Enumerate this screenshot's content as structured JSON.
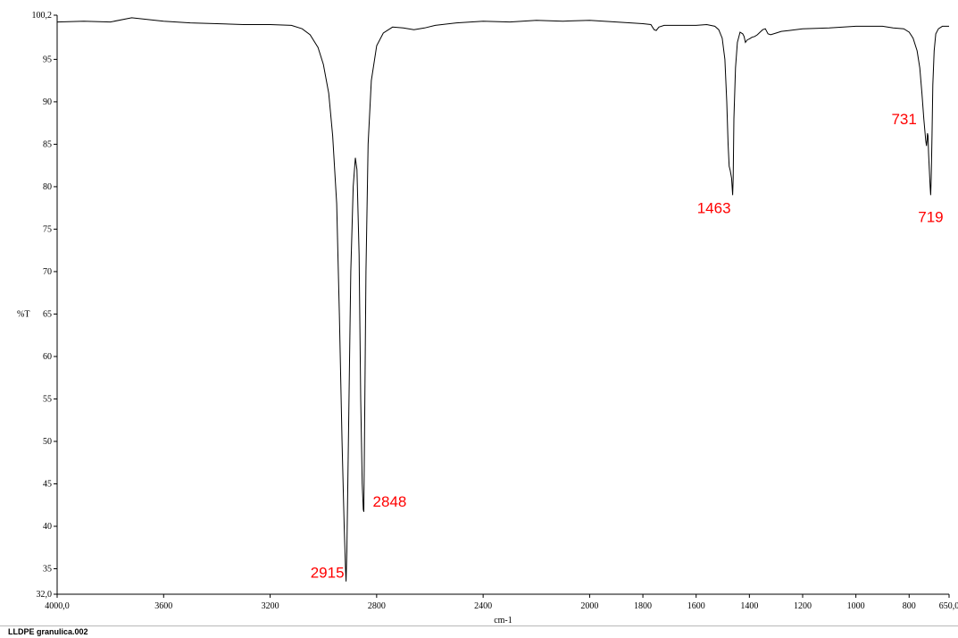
{
  "chart_data": {
    "type": "line",
    "title": "",
    "xlabel": "cm-1",
    "ylabel": "%T",
    "xlim": [
      4000.0,
      650.0
    ],
    "ylim": [
      32.0,
      100.2
    ],
    "x_ticks": [
      {
        "value": 4000,
        "label": "4000,0"
      },
      {
        "value": 3600,
        "label": "3600"
      },
      {
        "value": 3200,
        "label": "3200"
      },
      {
        "value": 2800,
        "label": "2800"
      },
      {
        "value": 2400,
        "label": "2400"
      },
      {
        "value": 2000,
        "label": "2000"
      },
      {
        "value": 1800,
        "label": "1800"
      },
      {
        "value": 1600,
        "label": "1600"
      },
      {
        "value": 1400,
        "label": "1400"
      },
      {
        "value": 1200,
        "label": "1200"
      },
      {
        "value": 1000,
        "label": "1000"
      },
      {
        "value": 800,
        "label": "800"
      },
      {
        "value": 650,
        "label": "650,0"
      }
    ],
    "y_ticks": [
      {
        "value": 100.2,
        "label": "100,2"
      },
      {
        "value": 95,
        "label": "95"
      },
      {
        "value": 90,
        "label": "90"
      },
      {
        "value": 85,
        "label": "85"
      },
      {
        "value": 80,
        "label": "80"
      },
      {
        "value": 75,
        "label": "75"
      },
      {
        "value": 70,
        "label": "70"
      },
      {
        "value": 65,
        "label": "65"
      },
      {
        "value": 60,
        "label": "60"
      },
      {
        "value": 55,
        "label": "55"
      },
      {
        "value": 50,
        "label": "50"
      },
      {
        "value": 45,
        "label": "45"
      },
      {
        "value": 40,
        "label": "40"
      },
      {
        "value": 35,
        "label": "35"
      },
      {
        "value": 32,
        "label": "32,0"
      }
    ],
    "grid": false,
    "line_color": "#000000",
    "annotation_color": "#ff0000",
    "series": [
      {
        "points": [
          [
            4000,
            99.4
          ],
          [
            3900,
            99.5
          ],
          [
            3800,
            99.4
          ],
          [
            3720,
            99.9
          ],
          [
            3600,
            99.5
          ],
          [
            3500,
            99.3
          ],
          [
            3400,
            99.2
          ],
          [
            3300,
            99.1
          ],
          [
            3200,
            99.1
          ],
          [
            3120,
            99.0
          ],
          [
            3080,
            98.6
          ],
          [
            3050,
            97.9
          ],
          [
            3020,
            96.4
          ],
          [
            3000,
            94.4
          ],
          [
            2980,
            91.0
          ],
          [
            2965,
            86.0
          ],
          [
            2950,
            78.0
          ],
          [
            2940,
            65.0
          ],
          [
            2930,
            50.0
          ],
          [
            2922,
            40.0
          ],
          [
            2917,
            35.0
          ],
          [
            2915,
            33.5
          ],
          [
            2912,
            37.0
          ],
          [
            2905,
            52.0
          ],
          [
            2897,
            70.0
          ],
          [
            2888,
            80.0
          ],
          [
            2880,
            83.4
          ],
          [
            2874,
            82.0
          ],
          [
            2866,
            72.0
          ],
          [
            2860,
            55.0
          ],
          [
            2854,
            45.0
          ],
          [
            2850,
            42.0
          ],
          [
            2848,
            41.7
          ],
          [
            2845,
            52.0
          ],
          [
            2840,
            70.0
          ],
          [
            2832,
            85.0
          ],
          [
            2820,
            92.5
          ],
          [
            2800,
            96.6
          ],
          [
            2775,
            98.1
          ],
          [
            2740,
            98.8
          ],
          [
            2700,
            98.7
          ],
          [
            2660,
            98.5
          ],
          [
            2620,
            98.7
          ],
          [
            2580,
            99.0
          ],
          [
            2500,
            99.3
          ],
          [
            2400,
            99.5
          ],
          [
            2300,
            99.4
          ],
          [
            2200,
            99.6
          ],
          [
            2100,
            99.5
          ],
          [
            2000,
            99.6
          ],
          [
            1900,
            99.4
          ],
          [
            1800,
            99.2
          ],
          [
            1770,
            99.1
          ],
          [
            1758,
            98.5
          ],
          [
            1750,
            98.4
          ],
          [
            1740,
            98.8
          ],
          [
            1720,
            99.0
          ],
          [
            1650,
            99.0
          ],
          [
            1600,
            99.0
          ],
          [
            1560,
            99.1
          ],
          [
            1530,
            98.9
          ],
          [
            1515,
            98.5
          ],
          [
            1502,
            97.5
          ],
          [
            1492,
            95.0
          ],
          [
            1485,
            90.0
          ],
          [
            1480,
            85.0
          ],
          [
            1476,
            82.4
          ],
          [
            1472,
            81.9
          ],
          [
            1467,
            81.0
          ],
          [
            1465,
            80.0
          ],
          [
            1463,
            79.0
          ],
          [
            1461,
            81.0
          ],
          [
            1458,
            88.0
          ],
          [
            1452,
            94.0
          ],
          [
            1445,
            97.0
          ],
          [
            1435,
            98.2
          ],
          [
            1425,
            98.0
          ],
          [
            1420,
            97.7
          ],
          [
            1415,
            97.0
          ],
          [
            1408,
            97.3
          ],
          [
            1400,
            97.4
          ],
          [
            1390,
            97.6
          ],
          [
            1380,
            97.7
          ],
          [
            1370,
            97.9
          ],
          [
            1360,
            98.2
          ],
          [
            1350,
            98.5
          ],
          [
            1340,
            98.6
          ],
          [
            1330,
            98.0
          ],
          [
            1320,
            97.9
          ],
          [
            1300,
            98.1
          ],
          [
            1280,
            98.3
          ],
          [
            1250,
            98.4
          ],
          [
            1200,
            98.6
          ],
          [
            1100,
            98.7
          ],
          [
            1000,
            98.9
          ],
          [
            900,
            98.9
          ],
          [
            860,
            98.7
          ],
          [
            820,
            98.6
          ],
          [
            800,
            98.2
          ],
          [
            785,
            97.5
          ],
          [
            770,
            96.0
          ],
          [
            760,
            94.0
          ],
          [
            752,
            91.0
          ],
          [
            745,
            88.0
          ],
          [
            738,
            85.5
          ],
          [
            735,
            84.8
          ],
          [
            733,
            85.3
          ],
          [
            731,
            86.3
          ],
          [
            729,
            86.0
          ],
          [
            727,
            84.0
          ],
          [
            724,
            82.0
          ],
          [
            721,
            80.0
          ],
          [
            719,
            79.0
          ],
          [
            717,
            81.0
          ],
          [
            714,
            86.0
          ],
          [
            711,
            92.0
          ],
          [
            706,
            96.0
          ],
          [
            700,
            98.0
          ],
          [
            690,
            98.6
          ],
          [
            675,
            98.9
          ],
          [
            660,
            98.9
          ],
          [
            650,
            98.9
          ]
        ]
      }
    ],
    "annotations": [
      {
        "text": "2915",
        "x": 2915,
        "y": 33.5
      },
      {
        "text": "2848",
        "x": 2848,
        "y": 41.7
      },
      {
        "text": "1463",
        "x": 1463,
        "y": 79.0
      },
      {
        "text": "731",
        "x": 731,
        "y": 86.3
      },
      {
        "text": "719",
        "x": 719,
        "y": 79.0
      }
    ]
  },
  "footer": {
    "filename": "LLDPE granulica.002"
  }
}
